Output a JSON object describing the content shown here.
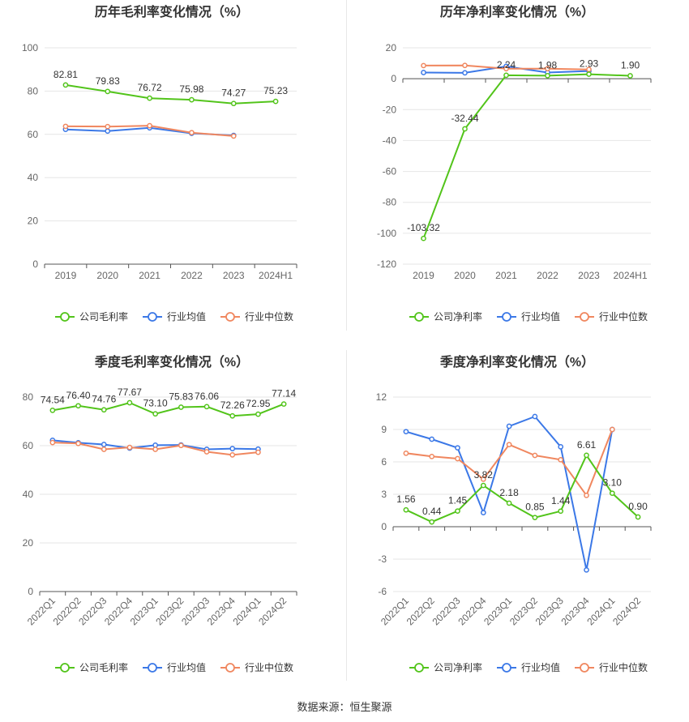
{
  "colors": {
    "company": "#52c41a",
    "industry_avg": "#3b78e7",
    "industry_median": "#f0875f",
    "grid": "#e6e6e6",
    "axis_text": "#666666",
    "title": "#333333"
  },
  "source": "数据来源：恒生聚源",
  "chart_data": [
    {
      "id": "annual-gross",
      "type": "line",
      "title": "历年毛利率变化情况（%）",
      "categories": [
        "2019",
        "2020",
        "2021",
        "2022",
        "2023",
        "2024H1"
      ],
      "ylim": [
        0,
        100
      ],
      "yticks": [
        0,
        20,
        40,
        60,
        80,
        100
      ],
      "rotate_x": false,
      "series": [
        {
          "name": "公司毛利率",
          "color": "#52c41a",
          "values": [
            82.81,
            79.83,
            76.72,
            75.98,
            74.27,
            75.23
          ],
          "labels": true
        },
        {
          "name": "行业均值",
          "color": "#3b78e7",
          "values": [
            62.3,
            61.5,
            63.0,
            60.5,
            59.5,
            null
          ],
          "labels": false
        },
        {
          "name": "行业中位数",
          "color": "#f0875f",
          "values": [
            63.7,
            63.6,
            64.0,
            60.8,
            59.2,
            null
          ],
          "labels": false
        }
      ],
      "value_labels": [
        "82.81",
        "79.83",
        "76.72",
        "75.98",
        "74.27",
        "75.23"
      ]
    },
    {
      "id": "annual-net",
      "type": "line",
      "title": "历年净利率变化情况（%）",
      "categories": [
        "2019",
        "2020",
        "2021",
        "2022",
        "2023",
        "2024H1"
      ],
      "ylim": [
        -120,
        20
      ],
      "yticks": [
        -120,
        -100,
        -80,
        -60,
        -40,
        -20,
        0,
        20
      ],
      "rotate_x": false,
      "series": [
        {
          "name": "公司净利率",
          "color": "#52c41a",
          "values": [
            -103.32,
            -32.44,
            2.24,
            1.98,
            2.93,
            1.9
          ],
          "labels": true
        },
        {
          "name": "行业均值",
          "color": "#3b78e7",
          "values": [
            4.0,
            3.8,
            8.0,
            4.0,
            5.0,
            null
          ],
          "labels": false
        },
        {
          "name": "行业中位数",
          "color": "#f0875f",
          "values": [
            8.5,
            8.6,
            6.5,
            6.5,
            6.0,
            null
          ],
          "labels": false
        }
      ],
      "value_labels": [
        "-103.32",
        "-32.44",
        "2.24",
        "1.98",
        "2.93",
        "1.90"
      ]
    },
    {
      "id": "quarter-gross",
      "type": "line",
      "title": "季度毛利率变化情况（%）",
      "categories": [
        "2022Q1",
        "2022Q2",
        "2022Q3",
        "2022Q4",
        "2023Q1",
        "2023Q2",
        "2023Q3",
        "2023Q4",
        "2024Q1",
        "2024Q2"
      ],
      "ylim": [
        0,
        80
      ],
      "yticks": [
        0,
        20,
        40,
        60,
        80
      ],
      "rotate_x": true,
      "series": [
        {
          "name": "公司毛利率",
          "color": "#52c41a",
          "values": [
            74.54,
            76.4,
            74.76,
            77.67,
            73.1,
            75.83,
            76.06,
            72.26,
            72.95,
            77.14
          ],
          "labels": true
        },
        {
          "name": "行业均值",
          "color": "#3b78e7",
          "values": [
            62.2,
            61.2,
            60.5,
            59.0,
            60.2,
            60.3,
            58.5,
            58.8,
            58.6,
            null
          ],
          "labels": false
        },
        {
          "name": "行业中位数",
          "color": "#f0875f",
          "values": [
            61.3,
            60.9,
            58.5,
            59.3,
            58.5,
            60.1,
            57.5,
            56.2,
            57.3,
            null
          ],
          "labels": false
        }
      ],
      "value_labels": [
        "74.54",
        "76.40",
        "74.76",
        "77.67",
        "73.10",
        "75.83",
        "76.06",
        "72.26",
        "72.95",
        "77.14"
      ]
    },
    {
      "id": "quarter-net",
      "type": "line",
      "title": "季度净利率变化情况（%）",
      "categories": [
        "2022Q1",
        "2022Q2",
        "2022Q3",
        "2022Q4",
        "2023Q1",
        "2023Q2",
        "2023Q3",
        "2023Q4",
        "2024Q1",
        "2024Q2"
      ],
      "ylim": [
        -6,
        12
      ],
      "yticks": [
        -6,
        -3,
        0,
        3,
        6,
        9,
        12
      ],
      "rotate_x": true,
      "series": [
        {
          "name": "公司净利率",
          "color": "#52c41a",
          "values": [
            1.56,
            0.44,
            1.45,
            3.82,
            2.18,
            0.85,
            1.44,
            6.61,
            3.1,
            0.9
          ],
          "labels": true
        },
        {
          "name": "行业均值",
          "color": "#3b78e7",
          "values": [
            8.8,
            8.1,
            7.3,
            1.3,
            9.3,
            10.2,
            7.4,
            -4.0,
            9.0,
            null
          ],
          "labels": false
        },
        {
          "name": "行业中位数",
          "color": "#f0875f",
          "values": [
            6.8,
            6.5,
            6.3,
            4.4,
            7.6,
            6.6,
            6.2,
            2.9,
            9.0,
            null
          ],
          "labels": false
        }
      ],
      "value_labels": [
        "1.56",
        "0.44",
        "1.45",
        "3.82",
        "2.18",
        "0.85",
        "1.44",
        "6.61",
        "3.10",
        "0.90"
      ]
    }
  ]
}
